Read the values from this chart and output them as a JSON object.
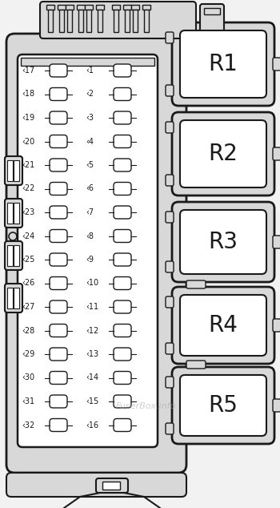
{
  "bg_color": "#f2f2f2",
  "line_color": "#1a1a1a",
  "white": "#ffffff",
  "light_gray": "#d8d8d8",
  "mid_gray": "#c0c0c0",
  "relay_labels": [
    "R1",
    "R2",
    "R3",
    "R4",
    "R5"
  ],
  "fuse_left": [
    17,
    18,
    19,
    20,
    21,
    22,
    23,
    24,
    25,
    26,
    27,
    28,
    29,
    30,
    31,
    32
  ],
  "fuse_right": [
    1,
    2,
    3,
    4,
    5,
    6,
    7,
    8,
    9,
    10,
    11,
    12,
    13,
    14,
    15,
    16
  ],
  "watermark": "FuserBox.info",
  "fig_w": 3.5,
  "fig_h": 6.34,
  "dpi": 100
}
